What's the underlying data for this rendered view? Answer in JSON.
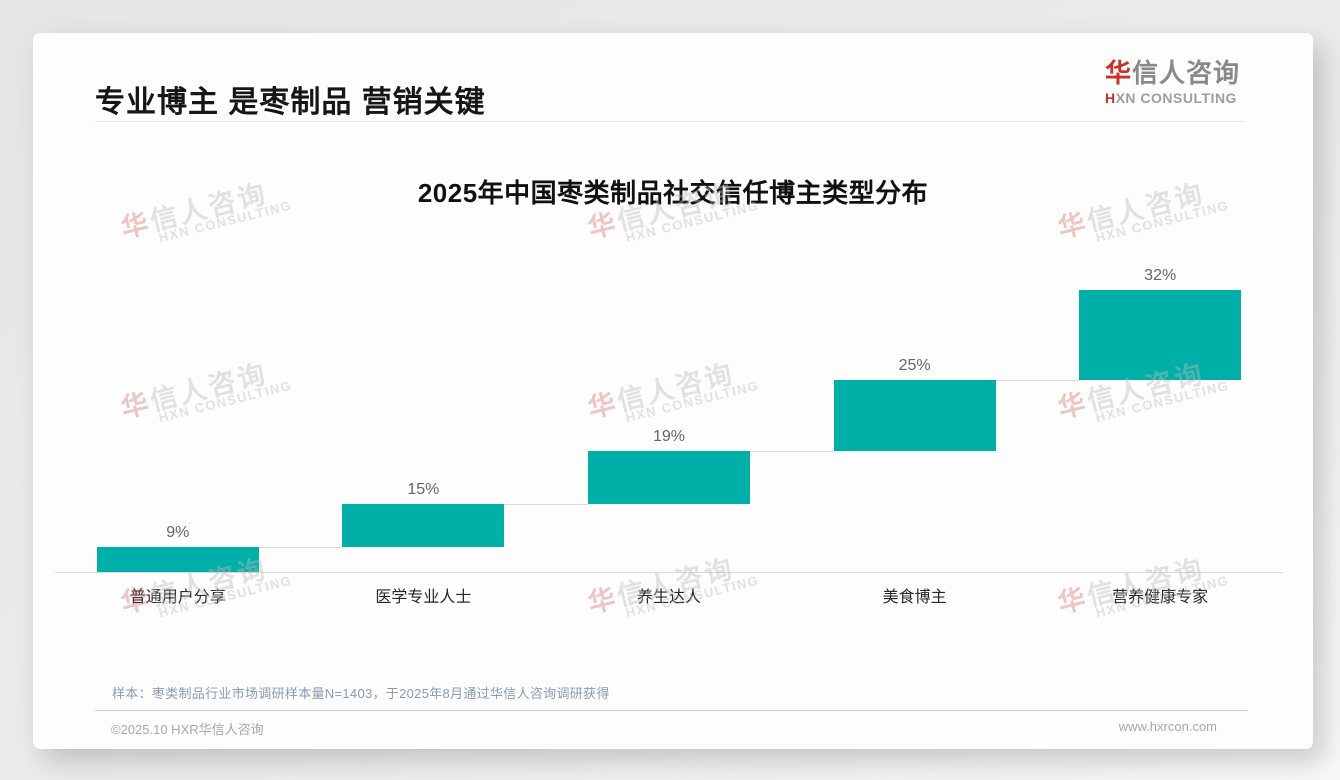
{
  "header": {
    "title": "专业博主 是枣制品 营销关键"
  },
  "logo": {
    "cn": "华信人咨询",
    "en": "HXN CONSULTING"
  },
  "watermark": {
    "line1": "华信人咨询",
    "line2": "HXN CONSULTING"
  },
  "chart_data": {
    "type": "bar",
    "subtype": "cumulative-step-waterfall",
    "title": "2025年中国枣类制品社交信任博主类型分布",
    "categories": [
      "普通用户分享",
      "医学专业人士",
      "养生达人",
      "美食博主",
      "营养健康专家"
    ],
    "values": [
      9,
      15,
      19,
      25,
      32
    ],
    "value_labels": [
      "9%",
      "15%",
      "19%",
      "25%",
      "32%"
    ],
    "unit": "%",
    "ylim": [
      0,
      100
    ],
    "cumulative": true,
    "grid": false,
    "legend": "none",
    "bar_color": "#00AFA7",
    "connector_color": "#d9d9d9",
    "baseline_color": "#d9d9d9",
    "value_label_color": "#666666",
    "category_label_color": "#262626"
  },
  "footnote": "样本：枣类制品行业市场调研样本量N=1403，于2025年8月通过华信人咨询调研获得",
  "footer": {
    "copyright": "©2025.10 HXR华信人咨询",
    "website": "www.hxrcon.com"
  },
  "colors": {
    "accent_teal": "#00AFA7",
    "brand_red": "#cd2e25",
    "title_text": "#161616",
    "card_bg": "#fdfdfe",
    "page_bg": "#ebebeb",
    "footnote_text": "#8b9ab1",
    "footer_text": "#a5a8ad"
  }
}
